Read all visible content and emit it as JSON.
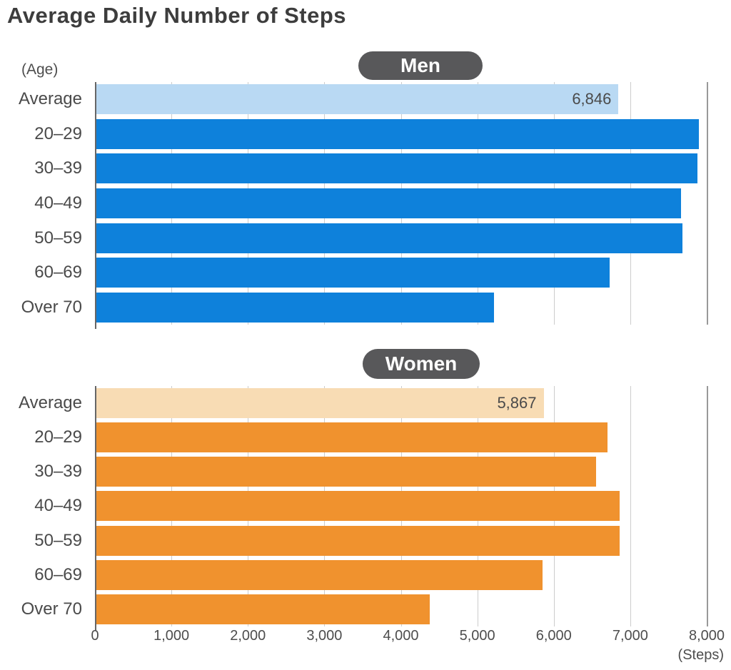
{
  "title": "Average Daily Number of Steps",
  "axis": {
    "y_unit_label": "(Age)",
    "x_unit_label": "(Steps)",
    "x_ticks": [
      "0",
      "1,000",
      "2,000",
      "3,000",
      "4,000",
      "5,000",
      "6,000",
      "7,000",
      "8,000"
    ],
    "x_min": 0,
    "x_max": 8000,
    "grid": true
  },
  "colors": {
    "men_bar": "#0E81DB",
    "men_average_bar": "#B9D9F3",
    "women_bar": "#F0922E",
    "women_average_bar": "#F8DCB4",
    "badge_bg": "#58585A",
    "badge_text": "#FFFFFF",
    "grid_line": "#CCCCCC",
    "grid_line_dark": "#999999",
    "axis_line": "#666666",
    "text": "#4A4A4A"
  },
  "chart_data": [
    {
      "type": "bar",
      "orientation": "horizontal",
      "group_label": "Men",
      "categories": [
        "Average",
        "20–29",
        "30–39",
        "40–49",
        "50–59",
        "60–69",
        "Over 70"
      ],
      "values": [
        6846,
        7900,
        7880,
        7660,
        7680,
        6730,
        5220
      ],
      "value_labels": [
        "6,846",
        "",
        "",
        "",
        "",
        "",
        ""
      ],
      "bar_color": "#0E81DB",
      "average_bar_color": "#B9D9F3",
      "xlim": [
        0,
        8000
      ]
    },
    {
      "type": "bar",
      "orientation": "horizontal",
      "group_label": "Women",
      "categories": [
        "Average",
        "20–29",
        "30–39",
        "40–49",
        "50–59",
        "60–69",
        "Over 70"
      ],
      "values": [
        5867,
        6700,
        6550,
        6860,
        6860,
        5850,
        4380
      ],
      "value_labels": [
        "5,867",
        "",
        "",
        "",
        "",
        "",
        ""
      ],
      "bar_color": "#F0922E",
      "average_bar_color": "#F8DCB4",
      "xlim": [
        0,
        8000
      ]
    }
  ]
}
